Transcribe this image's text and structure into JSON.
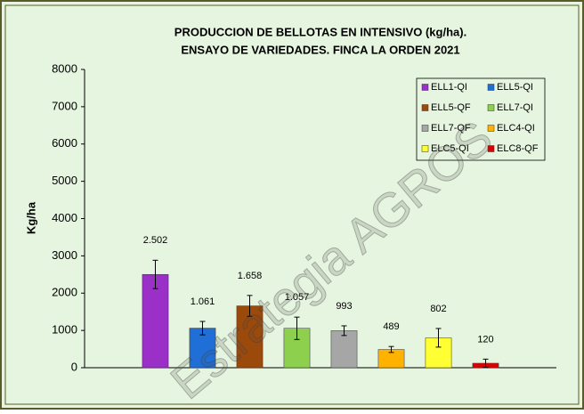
{
  "chart_data": {
    "type": "bar",
    "title": [
      "PRODUCCION DE BELLOTAS EN INTENSIVO (kg/ha).",
      "ENSAYO DE VARIEDADES. FINCA LA ORDEN 2021"
    ],
    "y_label": "Kg/ha",
    "watermark": "Estrategia AGROS",
    "ylim": [
      0,
      8000
    ],
    "yticks": [
      0,
      1000,
      2000,
      3000,
      4000,
      5000,
      6000,
      7000,
      8000
    ],
    "legend": "upper right",
    "series": [
      {
        "name": "ELL1-QI",
        "color": "#9b30c8",
        "values": [
          2502
        ],
        "errors": [
          380
        ],
        "value_labels": [
          "2.502"
        ]
      },
      {
        "name": "ELL5-QI",
        "color": "#1f6fd6",
        "values": [
          1061
        ],
        "errors": [
          180
        ],
        "value_labels": [
          "1.061"
        ]
      },
      {
        "name": "ELL5-QF",
        "color": "#9c4a0c",
        "values": [
          1658
        ],
        "errors": [
          280
        ],
        "value_labels": [
          "1.658"
        ]
      },
      {
        "name": "ELL7-QI",
        "color": "#8cd04e",
        "values": [
          1057
        ],
        "errors": [
          300
        ],
        "value_labels": [
          "1.057"
        ]
      },
      {
        "name": "ELL7-QF",
        "color": "#a6a6a6",
        "values": [
          993
        ],
        "errors": [
          130
        ]
      },
      {
        "name": "ELC4-QI",
        "color": "#ffb300",
        "values": [
          489
        ],
        "errors": [
          80
        ]
      },
      {
        "name": "ELC5-QI",
        "color": "#ffff33",
        "values": [
          802
        ],
        "errors": [
          250
        ]
      },
      {
        "name": "ELC8-QF",
        "color": "#e00000",
        "values": [
          120
        ],
        "errors": [
          110
        ]
      }
    ]
  }
}
